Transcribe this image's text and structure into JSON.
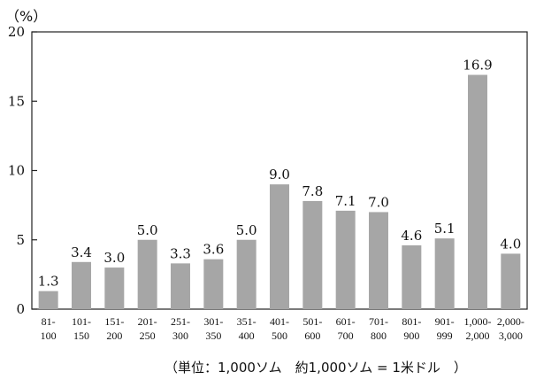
{
  "chart_data": {
    "type": "bar",
    "title": "",
    "ylabel": "（%）",
    "xlabel": "",
    "ylim": [
      0,
      20
    ],
    "yticks": [
      "0",
      "5",
      "10",
      "15",
      "20"
    ],
    "categories": [
      [
        "81-",
        "100"
      ],
      [
        "101-",
        "150"
      ],
      [
        "151-",
        "200"
      ],
      [
        "201-",
        "250"
      ],
      [
        "251-",
        "300"
      ],
      [
        "301-",
        "350"
      ],
      [
        "351-",
        "400"
      ],
      [
        "401-",
        "500"
      ],
      [
        "501-",
        "600"
      ],
      [
        "601-",
        "700"
      ],
      [
        "701-",
        "800"
      ],
      [
        "801-",
        "900"
      ],
      [
        "901-",
        "999"
      ],
      [
        "1,000-",
        "2,000"
      ],
      [
        "2,000-",
        "3,000"
      ]
    ],
    "values": [
      1.3,
      3.4,
      3.0,
      5.0,
      3.3,
      3.6,
      5.0,
      9.0,
      7.8,
      7.1,
      7.0,
      4.6,
      5.1,
      16.9,
      4.0
    ],
    "value_labels": [
      "1.3",
      "3.4",
      "3.0",
      "5.0",
      "3.3",
      "3.6",
      "5.0",
      "9.0",
      "7.8",
      "7.1",
      "7.0",
      "4.6",
      "5.1",
      "16.9",
      "4.0"
    ],
    "bar_color": "#a6a6a6",
    "grid": false,
    "note": "（単位：1,000ソム　約1,000ソム = 1米ドル　）"
  }
}
